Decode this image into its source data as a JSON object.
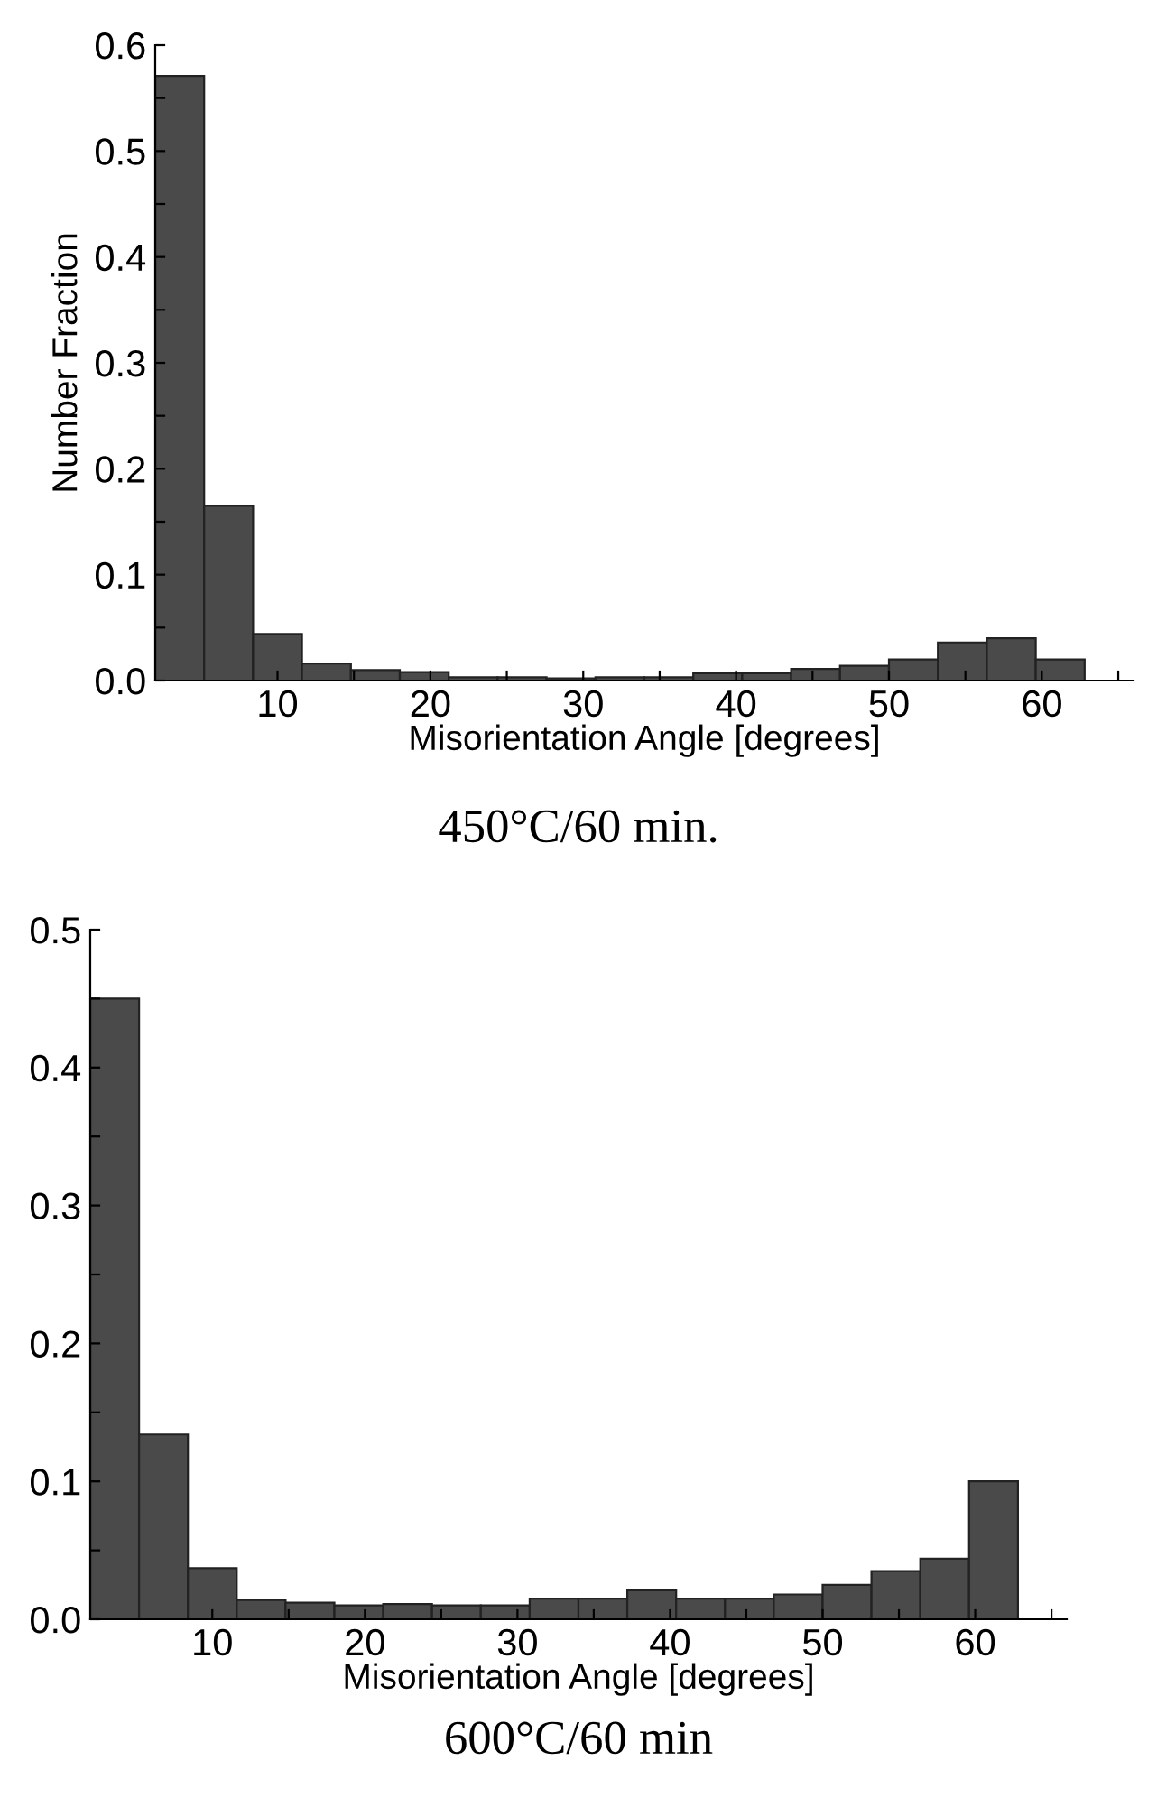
{
  "chart_data": [
    {
      "type": "histogram",
      "xlabel": "Misorientation Angle [degrees]",
      "ylabel": "Number Fraction",
      "annotations": [
        "450°C/60 min."
      ],
      "color": "#4a4a4a",
      "bins": [
        2,
        5.2,
        8.4,
        11.6,
        14.8,
        18,
        21.2,
        24.4,
        27.6,
        30.8,
        34,
        37.2,
        40.4,
        43.6,
        46.8,
        50,
        53.2,
        56.4,
        59.6,
        62.8
      ],
      "values": [
        0.571,
        0.165,
        0.044,
        0.016,
        0.01,
        0.008,
        0.003,
        0.003,
        0.002,
        0.003,
        0.003,
        0.007,
        0.007,
        0.011,
        0.014,
        0.02,
        0.036,
        0.04,
        0.02
      ],
      "xlim": [
        2,
        66
      ],
      "xticks": [
        10,
        {
          "value": 15,
          "label": null
        },
        20,
        {
          "value": 25,
          "label": null
        },
        30,
        {
          "value": 35,
          "label": null
        },
        40,
        {
          "value": 45,
          "label": null
        },
        50,
        {
          "value": 55,
          "label": null
        },
        60,
        {
          "value": 65,
          "label": null
        }
      ],
      "ylim": [
        0,
        0.6
      ],
      "yticks": [
        {
          "value": 0,
          "label": "0.0"
        },
        {
          "value": 0.05,
          "label": null
        },
        0.1,
        {
          "value": 0.15,
          "label": null
        },
        0.2,
        {
          "value": 0.25,
          "label": null
        },
        0.3,
        {
          "value": 0.35,
          "label": null
        },
        0.4,
        {
          "value": 0.45,
          "label": null
        },
        0.5,
        {
          "value": 0.55,
          "label": null
        },
        0.6
      ],
      "grid": false
    },
    {
      "type": "histogram",
      "xlabel": "Misorientation Angle [degrees]",
      "annotations": [
        "600°C/60 min"
      ],
      "color": "#4a4a4a",
      "bins": [
        2,
        5.2,
        8.4,
        11.6,
        14.8,
        18,
        21.2,
        24.4,
        27.6,
        30.8,
        34,
        37.2,
        40.4,
        43.6,
        46.8,
        50,
        53.2,
        56.4,
        59.6,
        62.8
      ],
      "values": [
        0.45,
        0.134,
        0.037,
        0.014,
        0.012,
        0.01,
        0.011,
        0.01,
        0.01,
        0.015,
        0.015,
        0.021,
        0.015,
        0.015,
        0.018,
        0.025,
        0.035,
        0.044,
        0.1
      ],
      "xlim": [
        2,
        66
      ],
      "xticks": [
        10,
        {
          "value": 15,
          "label": null
        },
        20,
        {
          "value": 25,
          "label": null
        },
        30,
        {
          "value": 35,
          "label": null
        },
        40,
        {
          "value": 45,
          "label": null
        },
        50,
        {
          "value": 55,
          "label": null
        },
        60,
        {
          "value": 65,
          "label": null
        }
      ],
      "ylim": [
        0,
        0.5
      ],
      "yticks": [
        {
          "value": 0,
          "label": "0.0"
        },
        {
          "value": 0.05,
          "label": null
        },
        0.1,
        {
          "value": 0.15,
          "label": null
        },
        0.2,
        {
          "value": 0.25,
          "label": null
        },
        0.3,
        {
          "value": 0.35,
          "label": null
        },
        0.4,
        {
          "value": 0.45,
          "label": null
        },
        0.5
      ],
      "grid": false
    }
  ]
}
